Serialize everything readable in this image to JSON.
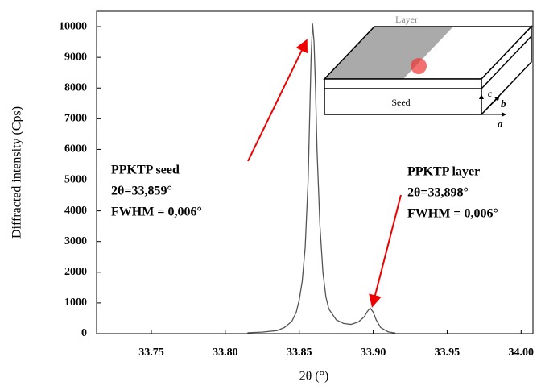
{
  "chart_data": {
    "type": "line",
    "x": [
      33.815,
      33.825,
      33.835,
      33.84,
      33.845,
      33.848,
      33.85,
      33.852,
      33.854,
      33.856,
      33.857,
      33.858,
      33.859,
      33.86,
      33.861,
      33.862,
      33.864,
      33.866,
      33.868,
      33.87,
      33.875,
      33.88,
      33.885,
      33.89,
      33.894,
      33.896,
      33.898,
      33.9,
      33.902,
      33.905,
      33.91,
      33.915
    ],
    "values": [
      30,
      50,
      100,
      200,
      400,
      700,
      1100,
      1700,
      2800,
      5000,
      7000,
      9000,
      10100,
      9500,
      8000,
      6000,
      3500,
      2000,
      1200,
      800,
      450,
      330,
      300,
      380,
      550,
      720,
      830,
      700,
      450,
      200,
      60,
      20
    ],
    "color": "#555555",
    "xlim": [
      33.713,
      34.008
    ],
    "ylim": [
      0,
      10500
    ],
    "xticks": [
      33.75,
      {
        "value": 33.8,
        "label": "33.80"
      },
      33.85,
      {
        "value": 33.9,
        "label": "33.90"
      },
      33.95,
      {
        "value": 34.0,
        "label": "34.00"
      }
    ],
    "yticks": [
      0,
      1000,
      2000,
      3000,
      4000,
      5000,
      6000,
      7000,
      8000,
      9000,
      10000
    ],
    "xlabel": "2θ (°)",
    "ylabel": "Diffracted intensity (Cps)",
    "annotations": {
      "seed": [
        "PPKTP seed",
        "2θ=33,859°",
        "FWHM = 0,006°"
      ],
      "layer": [
        "PPKTP layer",
        "2θ=33,898°",
        "FWHM = 0,006°"
      ]
    },
    "inset": {
      "layer": "Layer",
      "seed": "Seed",
      "a": "a",
      "b": "b",
      "c": "c"
    }
  }
}
